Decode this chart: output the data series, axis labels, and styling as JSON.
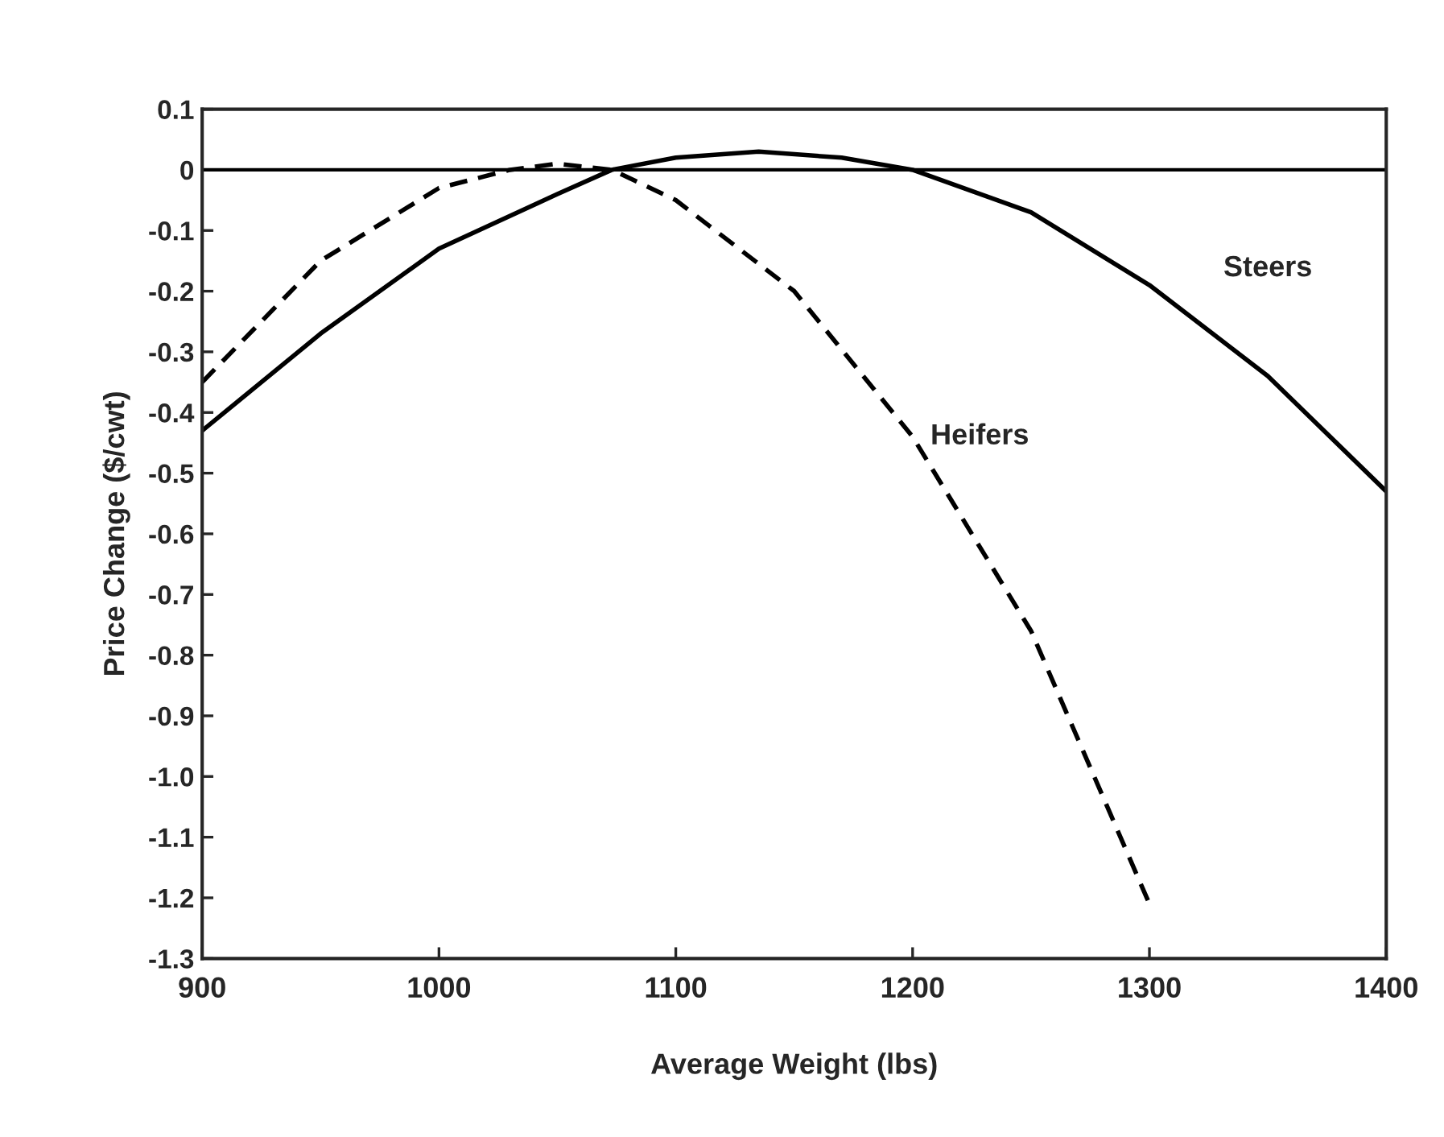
{
  "chart_data": {
    "type": "line",
    "xlabel": "Average Weight (lbs)",
    "ylabel": "Price Change ($/cwt)",
    "xlim": [
      900,
      1400
    ],
    "ylim": [
      -1.3,
      0.1
    ],
    "xticks": [
      900,
      1000,
      1100,
      1200,
      1300,
      1400
    ],
    "yticks": [
      {
        "value": 0.1,
        "label": "0.1"
      },
      {
        "value": 0,
        "label": "0"
      },
      {
        "value": -0.1,
        "label": "-0.1"
      },
      {
        "value": -0.2,
        "label": "-0.2"
      },
      {
        "value": -0.3,
        "label": "-0.3"
      },
      {
        "value": -0.4,
        "label": "-0.4"
      },
      {
        "value": -0.5,
        "label": "-0.5"
      },
      {
        "value": -0.6,
        "label": "-0.6"
      },
      {
        "value": -0.7,
        "label": "-0.7"
      },
      {
        "value": -0.8,
        "label": "-0.8"
      },
      {
        "value": -0.9,
        "label": "-0.9"
      },
      {
        "value": -1.0,
        "label": "-1.0"
      },
      {
        "value": -1.1,
        "label": "-1.1"
      },
      {
        "value": -1.2,
        "label": "-1.2"
      },
      {
        "value": -1.3,
        "label": "-1.3"
      }
    ],
    "grid": false,
    "legend": false,
    "marker": "none",
    "ref_lines": [
      {
        "axis": "y",
        "value": 0,
        "color": "#000000",
        "line_style": "solid"
      }
    ],
    "series": [
      {
        "name": "Steers",
        "color": "#000000",
        "line_style": "solid",
        "x": [
          900,
          950,
          1000,
          1050,
          1073,
          1100,
          1135,
          1170,
          1200,
          1250,
          1300,
          1350,
          1400
        ],
        "values": [
          -0.43,
          -0.27,
          -0.13,
          -0.04,
          0,
          0.02,
          0.03,
          0.02,
          0,
          -0.07,
          -0.19,
          -0.34,
          -0.53
        ]
      },
      {
        "name": "Heifers",
        "color": "#000000",
        "line_style": "dashed",
        "x": [
          900,
          950,
          1000,
          1030,
          1050,
          1073,
          1100,
          1150,
          1200,
          1250,
          1300
        ],
        "values": [
          -0.35,
          -0.15,
          -0.03,
          0,
          0.01,
          0,
          -0.05,
          -0.2,
          -0.44,
          -0.76,
          -1.21
        ]
      }
    ]
  }
}
